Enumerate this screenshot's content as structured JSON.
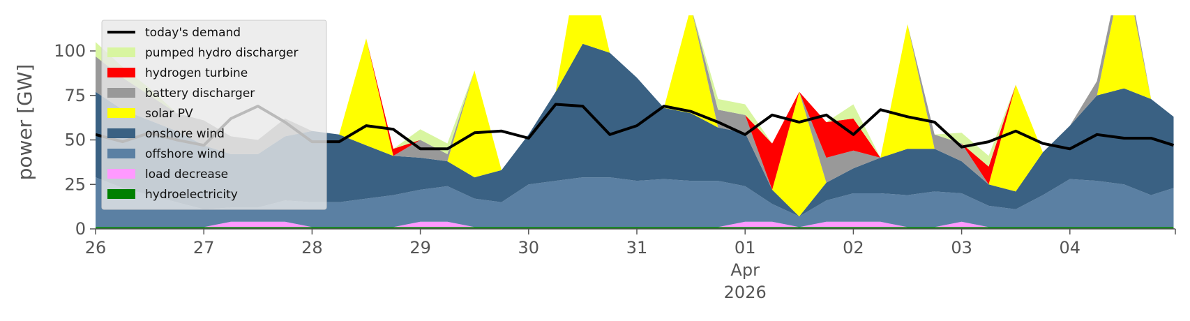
{
  "chart_data": {
    "type": "area",
    "ylabel": "power [GW]",
    "ylim": [
      0,
      120
    ],
    "xlim": [
      "2026-03-26",
      "2026-04-04 23:00"
    ],
    "yticks": [
      0,
      25,
      50,
      75,
      100
    ],
    "xticks": [
      {
        "date": "2026-03-26",
        "label": "26"
      },
      {
        "date": "2026-03-27",
        "label": "27"
      },
      {
        "date": "2026-03-28",
        "label": "28"
      },
      {
        "date": "2026-03-29",
        "label": "29"
      },
      {
        "date": "2026-03-30",
        "label": "30"
      },
      {
        "date": "2026-03-31",
        "label": "31"
      },
      {
        "date": "2026-04-01",
        "label": "01",
        "sub": [
          "Apr",
          "2026"
        ]
      },
      {
        "date": "2026-04-02",
        "label": "02"
      },
      {
        "date": "2026-04-03",
        "label": "03"
      },
      {
        "date": "2026-04-04",
        "label": "04"
      }
    ],
    "legend_location": "top-left",
    "grid": false,
    "x": [
      "2026-03-26 00:00",
      "2026-03-26 06:00",
      "2026-03-26 12:00",
      "2026-03-26 18:00",
      "2026-03-27 00:00",
      "2026-03-27 06:00",
      "2026-03-27 12:00",
      "2026-03-27 18:00",
      "2026-03-28 00:00",
      "2026-03-28 06:00",
      "2026-03-28 12:00",
      "2026-03-28 18:00",
      "2026-03-29 00:00",
      "2026-03-29 06:00",
      "2026-03-29 12:00",
      "2026-03-29 18:00",
      "2026-03-30 00:00",
      "2026-03-30 06:00",
      "2026-03-30 12:00",
      "2026-03-30 18:00",
      "2026-03-31 00:00",
      "2026-03-31 06:00",
      "2026-03-31 12:00",
      "2026-03-31 18:00",
      "2026-04-01 00:00",
      "2026-04-01 06:00",
      "2026-04-01 12:00",
      "2026-04-01 18:00",
      "2026-04-02 00:00",
      "2026-04-02 06:00",
      "2026-04-02 12:00",
      "2026-04-02 18:00",
      "2026-04-03 00:00",
      "2026-04-03 06:00",
      "2026-04-03 12:00",
      "2026-04-03 18:00",
      "2026-04-04 00:00",
      "2026-04-04 06:00",
      "2026-04-04 12:00",
      "2026-04-04 18:00",
      "2026-04-04 23:00"
    ],
    "series": [
      {
        "name": "hydroelectricity",
        "color": "#008000",
        "values": [
          1,
          1,
          1,
          1,
          1,
          1,
          1,
          1,
          1,
          1,
          1,
          1,
          1,
          1,
          1,
          1,
          1,
          1,
          1,
          1,
          1,
          1,
          1,
          1,
          1,
          1,
          1,
          1,
          1,
          1,
          1,
          1,
          1,
          1,
          1,
          1,
          1,
          1,
          1,
          1,
          1
        ]
      },
      {
        "name": "load decrease",
        "color": "#ff99ff",
        "values": [
          0,
          0,
          0,
          0,
          0,
          3,
          3,
          3,
          0,
          0,
          0,
          0,
          3,
          3,
          0,
          0,
          0,
          0,
          0,
          0,
          0,
          0,
          0,
          0,
          3,
          3,
          0,
          3,
          3,
          3,
          0,
          0,
          3,
          0,
          0,
          0,
          0,
          0,
          0,
          0,
          0
        ]
      },
      {
        "name": "offshore wind",
        "color": "#5b80a3",
        "values": [
          28,
          22,
          18,
          14,
          10,
          8,
          8,
          12,
          14,
          14,
          16,
          18,
          18,
          20,
          16,
          14,
          24,
          26,
          28,
          28,
          26,
          27,
          26,
          26,
          20,
          10,
          6,
          12,
          16,
          16,
          18,
          20,
          16,
          12,
          10,
          18,
          27,
          26,
          24,
          18,
          22
        ]
      },
      {
        "name": "onshore wind",
        "color": "#3a6183",
        "values": [
          48,
          44,
          42,
          40,
          36,
          30,
          30,
          36,
          40,
          38,
          30,
          22,
          18,
          14,
          12,
          18,
          28,
          50,
          75,
          70,
          58,
          40,
          38,
          30,
          30,
          8,
          0,
          10,
          14,
          20,
          26,
          24,
          18,
          12,
          10,
          24,
          30,
          48,
          54,
          54,
          40
        ]
      },
      {
        "name": "solar PV",
        "color": "#ffff00",
        "values": [
          0,
          0,
          0,
          0,
          0,
          0,
          0,
          0,
          0,
          0,
          60,
          0,
          0,
          0,
          60,
          0,
          0,
          0,
          60,
          0,
          0,
          0,
          60,
          0,
          0,
          0,
          70,
          0,
          0,
          0,
          70,
          0,
          0,
          0,
          60,
          0,
          0,
          0,
          70,
          0,
          0
        ]
      },
      {
        "name": "battery discharger",
        "color": "#999999",
        "values": [
          20,
          18,
          14,
          10,
          14,
          10,
          8,
          10,
          0,
          0,
          0,
          0,
          10,
          4,
          0,
          0,
          0,
          0,
          0,
          0,
          0,
          0,
          0,
          10,
          10,
          0,
          0,
          14,
          10,
          0,
          0,
          8,
          10,
          0,
          0,
          0,
          0,
          8,
          6,
          0,
          0
        ]
      },
      {
        "name": "hydrogen turbine",
        "color": "#ff0000",
        "values": [
          0,
          0,
          0,
          0,
          0,
          0,
          0,
          0,
          0,
          0,
          0,
          4,
          0,
          0,
          0,
          0,
          0,
          0,
          0,
          0,
          0,
          0,
          0,
          0,
          0,
          26,
          0,
          20,
          18,
          0,
          0,
          0,
          0,
          10,
          0,
          0,
          0,
          0,
          0,
          0,
          0
        ]
      },
      {
        "name": "pumped hydro discharger",
        "color": "#d8f5a0",
        "values": [
          8,
          6,
          4,
          0,
          0,
          0,
          0,
          0,
          0,
          0,
          0,
          0,
          6,
          6,
          0,
          0,
          0,
          0,
          0,
          0,
          0,
          0,
          0,
          6,
          6,
          0,
          0,
          0,
          8,
          0,
          0,
          0,
          6,
          6,
          0,
          0,
          0,
          0,
          0,
          0,
          0
        ]
      },
      {
        "name": "today's demand",
        "color": "#000000",
        "type": "line",
        "values": [
          53,
          49,
          54,
          50,
          47,
          62,
          69,
          60,
          49,
          49,
          58,
          56,
          45,
          45,
          54,
          55,
          51,
          70,
          69,
          53,
          58,
          69,
          66,
          60,
          53,
          64,
          60,
          64,
          53,
          67,
          63,
          60,
          46,
          49,
          55,
          48,
          45,
          53,
          51,
          51,
          47
        ]
      }
    ],
    "legend_order": [
      "today's demand",
      "pumped hydro discharger",
      "hydrogen turbine",
      "battery discharger",
      "solar PV",
      "onshore wind",
      "offshore wind",
      "load decrease",
      "hydroelectricity"
    ]
  }
}
